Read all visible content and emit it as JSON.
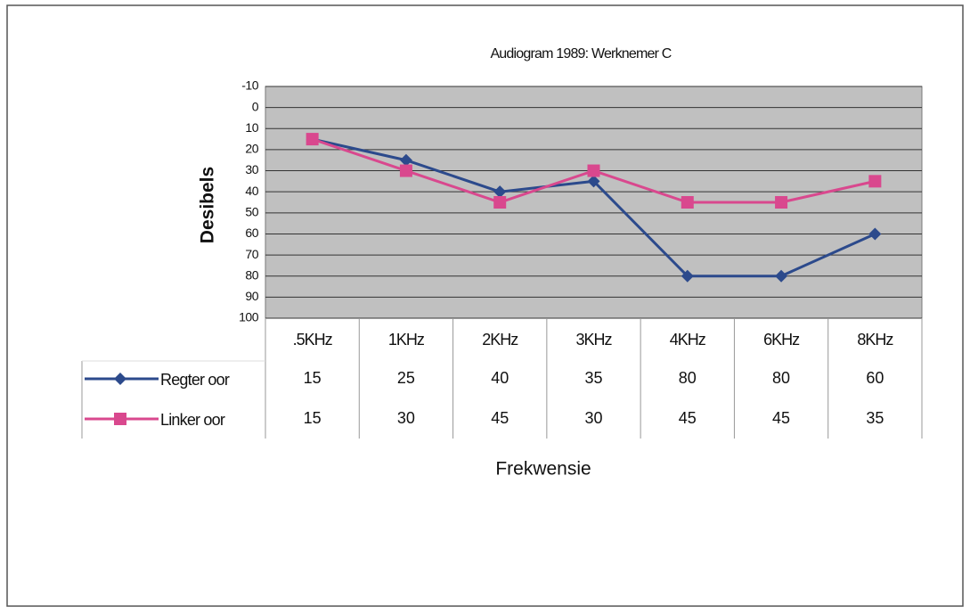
{
  "chart_data": {
    "type": "line",
    "title": "Audiogram 1989: Werknemer C",
    "y_label": "Desibels",
    "x_label": "Frekwensie",
    "categories": [
      ".5KHz",
      "1KHz",
      "2KHz",
      "3KHz",
      "4KHz",
      "6KHz",
      "8KHz"
    ],
    "series": [
      {
        "name": "Regter oor",
        "color": "#2c4a8c",
        "marker": "diamond",
        "values": [
          15,
          25,
          40,
          35,
          80,
          80,
          60
        ]
      },
      {
        "name": "Linker oor",
        "color": "#d9488e",
        "marker": "square",
        "values": [
          15,
          30,
          45,
          30,
          45,
          45,
          35
        ]
      }
    ],
    "ylim": [
      -10,
      100
    ],
    "y_inverted": true,
    "yticks": [
      -10,
      0,
      10,
      20,
      30,
      40,
      50,
      60,
      70,
      80,
      90,
      100
    ],
    "grid": true,
    "data_table": true
  }
}
